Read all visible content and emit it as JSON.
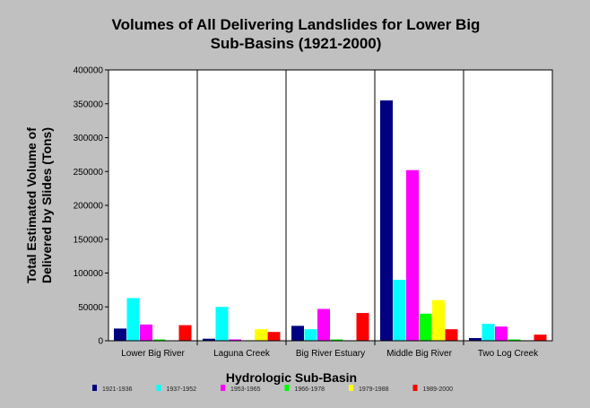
{
  "chart_data": {
    "type": "bar",
    "title": "Volumes of All Delivering Landslides for Lower Big Sub-Basins (1921-2000)",
    "title_lines": [
      "Volumes of All Delivering Landslides for Lower Big",
      "Sub-Basins (1921-2000)"
    ],
    "xlabel": "Hydrologic Sub-Basin",
    "ylabel": "Total Estimated Volume of Delivered by Slides (Tons)",
    "ylabel_lines": [
      "Total Estimated Volume of",
      "Delivered by Slides (Tons)"
    ],
    "ylim": [
      0,
      400000
    ],
    "yticks": [
      0,
      50000,
      100000,
      150000,
      200000,
      250000,
      300000,
      350000,
      400000
    ],
    "grid": "vertical category separators",
    "legend_position": "bottom",
    "categories": [
      "Lower Big River",
      "Laguna Creek",
      "Big River Estuary",
      "Middle Big River",
      "Two Log Creek"
    ],
    "series": [
      {
        "name": "1921-1936",
        "color": "#000080",
        "values": [
          18000,
          3000,
          22000,
          355000,
          4000
        ]
      },
      {
        "name": "1937-1952",
        "color": "#00ffff",
        "values": [
          63000,
          50000,
          17000,
          90000,
          25000
        ]
      },
      {
        "name": "1953-1965",
        "color": "#ff00ff",
        "values": [
          24000,
          2000,
          47000,
          252000,
          21000
        ]
      },
      {
        "name": "1966-1978",
        "color": "#00ff00",
        "values": [
          2000,
          0,
          2000,
          40000,
          2000
        ]
      },
      {
        "name": "1979-1988",
        "color": "#ffff00",
        "values": [
          0,
          17000,
          0,
          60000,
          0
        ]
      },
      {
        "name": "1989-2000",
        "color": "#ff0000",
        "values": [
          23000,
          13000,
          41000,
          17000,
          9000
        ]
      }
    ]
  }
}
